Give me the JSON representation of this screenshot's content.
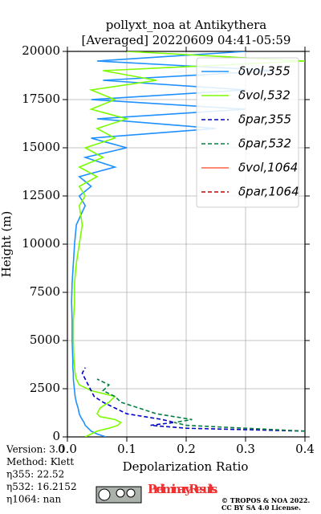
{
  "chart_data": {
    "type": "line",
    "title": "pollyxt_noa at Antikythera",
    "subtitle": "[Averaged] 20220609 04:41-05:59",
    "x_label": "Depolarization Ratio",
    "y_label": "Height (m)",
    "y": [
      0,
      150,
      300,
      450,
      600,
      750,
      900,
      1050,
      1200,
      1500,
      1800,
      2100,
      2400,
      2700,
      3000,
      3300,
      3600,
      4000,
      5000,
      6000,
      7000,
      8000,
      9000,
      10000,
      11000,
      12000,
      12500,
      13000,
      13500,
      14000,
      14500,
      15000,
      15500,
      16000,
      16500,
      17000,
      17500,
      18000,
      18500,
      19000,
      19500,
      20000
    ],
    "series": [
      {
        "name": "δvol,355",
        "color": "#1e90ff",
        "dash": false,
        "values": [
          0.065,
          0.05,
          0.04,
          0.035,
          0.03,
          0.028,
          0.025,
          0.022,
          0.02,
          0.018,
          0.015,
          0.013,
          0.012,
          0.011,
          0.01,
          0.01,
          0.009,
          0.009,
          0.008,
          0.008,
          0.007,
          0.008,
          0.01,
          0.012,
          0.015,
          0.03,
          0.02,
          0.04,
          0.02,
          0.08,
          0.03,
          0.1,
          0.04,
          0.25,
          0.05,
          0.3,
          0.04,
          0.3,
          0.06,
          0.35,
          0.05,
          0.3
        ]
      },
      {
        "name": "δvol,532",
        "color": "#7cfc00",
        "dash": false,
        "values": [
          0.03,
          0.04,
          0.05,
          0.07,
          0.085,
          0.09,
          0.08,
          0.055,
          0.05,
          0.055,
          0.07,
          0.08,
          0.04,
          0.02,
          0.015,
          0.013,
          0.012,
          0.011,
          0.01,
          0.01,
          0.012,
          0.012,
          0.015,
          0.02,
          0.025,
          0.02,
          0.03,
          0.02,
          0.05,
          0.02,
          0.06,
          0.03,
          0.08,
          0.05,
          0.1,
          0.04,
          0.08,
          0.04,
          0.15,
          0.06,
          0.4,
          0.1
        ]
      },
      {
        "name": "δpar,355",
        "color": "#0000cd",
        "dash": true,
        "values": [
          null,
          null,
          0.4,
          0.2,
          0.14,
          0.18,
          0.16,
          0.13,
          0.1,
          0.08,
          0.06,
          0.045,
          0.04,
          0.035,
          0.03,
          0.025,
          0.03,
          null,
          null,
          null,
          null,
          null,
          null,
          null,
          null,
          null,
          null,
          null,
          null,
          null,
          null,
          null,
          null,
          null,
          null,
          null,
          null,
          null,
          null,
          null,
          null,
          null
        ]
      },
      {
        "name": "δpar,532",
        "color": "#008040",
        "dash": true,
        "values": [
          null,
          null,
          0.4,
          0.3,
          0.2,
          0.18,
          0.21,
          0.18,
          0.15,
          0.12,
          0.09,
          0.08,
          0.06,
          0.07,
          0.05,
          null,
          null,
          null,
          null,
          null,
          null,
          null,
          null,
          null,
          null,
          null,
          null,
          null,
          null,
          null,
          null,
          null,
          null,
          null,
          null,
          null,
          null,
          null,
          null,
          null,
          null,
          null
        ]
      },
      {
        "name": "δvol,1064",
        "color": "#ff6347",
        "dash": false,
        "values": [
          null,
          null,
          null,
          null,
          null,
          null,
          null,
          null,
          null,
          null,
          null,
          null,
          null,
          null,
          null,
          null,
          null,
          null,
          null,
          null,
          null,
          null,
          null,
          null,
          null,
          null,
          null,
          null,
          null,
          null,
          null,
          null,
          null,
          null,
          null,
          null,
          null,
          null,
          null,
          null,
          null,
          null
        ]
      },
      {
        "name": "δpar,1064",
        "color": "#cc0000",
        "dash": true,
        "values": [
          null,
          null,
          null,
          null,
          null,
          null,
          null,
          null,
          null,
          null,
          null,
          null,
          null,
          null,
          null,
          null,
          null,
          null,
          null,
          null,
          null,
          null,
          null,
          null,
          null,
          null,
          null,
          null,
          null,
          null,
          null,
          null,
          null,
          null,
          null,
          null,
          null,
          null,
          null,
          null,
          null,
          null
        ]
      }
    ],
    "xlim": [
      0,
      0.4
    ],
    "ylim": [
      0,
      20000
    ],
    "xticks": [
      {
        "value": 0,
        "label": "0.0"
      },
      0.1,
      0.2,
      0.3,
      0.4
    ],
    "yticks": [
      0,
      2500,
      5000,
      7500,
      10000,
      12500,
      15000,
      17500,
      20000
    ],
    "grid": true,
    "legend": "upper right",
    "annotations": [
      "Version: 3.0",
      "Method: Klett",
      "η355:  22.52",
      "η532: 16.2152",
      "η1064:    nan"
    ],
    "watermark": "Preliminary Results.",
    "copyright": [
      "© TROPOS & NOA 2022.",
      "CC BY SA 4.0 License."
    ]
  }
}
